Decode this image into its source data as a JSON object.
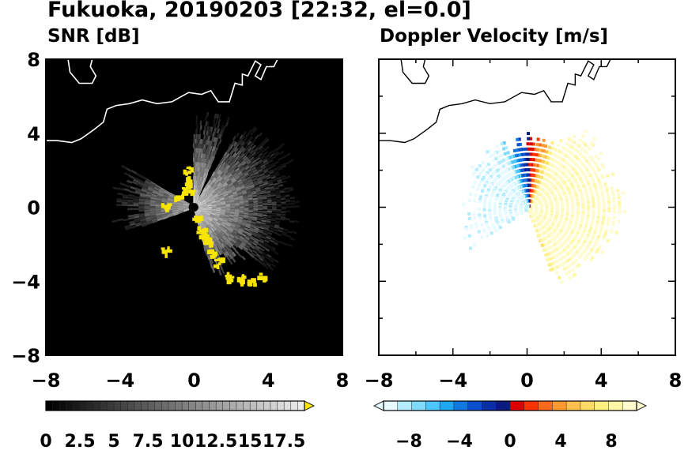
{
  "title": "Fukuoka, 20190203 [22:32, el=0.0]",
  "chart_data": [
    {
      "type": "heatmap",
      "title": "SNR [dB]",
      "xlim": [
        -8,
        8
      ],
      "ylim": [
        -8,
        8
      ],
      "x_ticks": [
        "−8",
        "−4",
        "0",
        "4",
        "8"
      ],
      "y_ticks": [
        "8",
        "4",
        "0",
        "−4",
        "−8"
      ],
      "background": "#000000",
      "radar_center": [
        0,
        0
      ],
      "colorbar": {
        "range": [
          0,
          19
        ],
        "extend": "max",
        "extend_color": "#ffe600",
        "tick_labels": [
          "0",
          "2.5",
          "5",
          "7.5",
          "10",
          "12.5",
          "15",
          "17.5"
        ],
        "tick_values": [
          0,
          2.5,
          5,
          7.5,
          10,
          12.5,
          15,
          17.5
        ]
      }
    },
    {
      "type": "heatmap",
      "title": "Doppler Velocity [m/s]",
      "xlim": [
        -8,
        8
      ],
      "ylim": [
        -8,
        8
      ],
      "x_ticks": [
        "−8",
        "−4",
        "0",
        "4",
        "8"
      ],
      "y_ticks": [
        "8",
        "4",
        "0",
        "−4",
        "−8"
      ],
      "background": "#ffffff",
      "radar_center": [
        0,
        0
      ],
      "colorbar": {
        "range": [
          -10,
          10
        ],
        "extend": "both",
        "tick_labels": [
          "−8",
          "−4",
          "0",
          "4",
          "8"
        ],
        "tick_values": [
          -8,
          -4,
          0,
          4,
          8
        ],
        "colors": [
          "#e6faff",
          "#b3ecff",
          "#80dcff",
          "#4dc6ff",
          "#1fa6f5",
          "#1078e0",
          "#0a4fcc",
          "#0a2ea8",
          "#0a1a80",
          "#dd0000",
          "#ff3300",
          "#ff6a1a",
          "#ff9a33",
          "#ffc04d",
          "#ffdb66",
          "#ffee80",
          "#fff6a6",
          "#fffbcc"
        ]
      }
    }
  ]
}
